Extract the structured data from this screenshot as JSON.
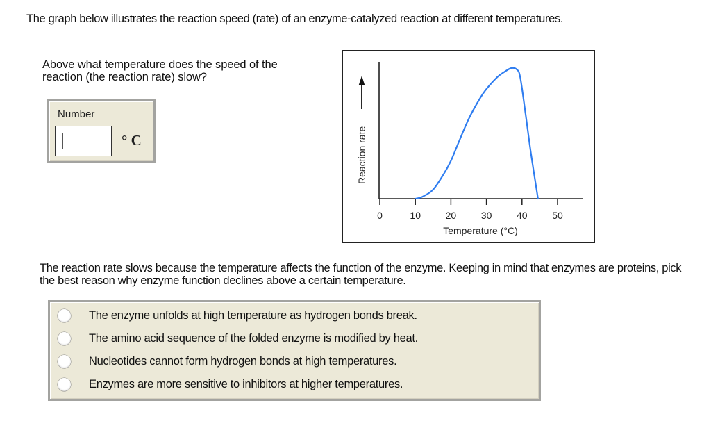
{
  "intro_text": "The graph below illustrates the reaction speed (rate) of an enzyme-catalyzed reaction at different temperatures.",
  "question1": {
    "text": "Above what temperature does the speed of the reaction (the reaction rate) slow?",
    "answer_box": {
      "label": "Number",
      "value": "",
      "unit": "° C"
    }
  },
  "chart_data": {
    "type": "line",
    "title": "",
    "xlabel": "Temperature (°C)",
    "ylabel": "Reaction rate",
    "ylabel_arrow": "up-arrow",
    "x_ticks": [
      0,
      10,
      20,
      30,
      40,
      50
    ],
    "xlim": [
      0,
      57
    ],
    "ylim": [
      0,
      105
    ],
    "y_ticks": [],
    "grid": false,
    "legend": null,
    "line_color": "#2f7df0",
    "series": [
      {
        "name": "Reaction rate",
        "x": [
          10,
          12,
          15,
          18,
          20,
          22,
          25,
          28,
          30,
          33,
          35,
          37,
          38.5,
          39.5,
          41,
          42.5,
          44.5
        ],
        "values": [
          0,
          1.5,
          7,
          19,
          29,
          42,
          61,
          76,
          84,
          93,
          97,
          100,
          99,
          93,
          65,
          35,
          0
        ]
      }
    ]
  },
  "question2": {
    "text": "The reaction rate slows because the temperature affects the function of the enzyme. Keeping in mind that enzymes are proteins, pick the best reason why enzyme function declines above a certain temperature.",
    "options": [
      {
        "label": "The enzyme unfolds at high temperature as hydrogen bonds break.",
        "selected": false
      },
      {
        "label": "The amino acid sequence of the folded enzyme is modified by heat.",
        "selected": false
      },
      {
        "label": "Nucleotides cannot form hydrogen bonds at high temperatures.",
        "selected": false
      },
      {
        "label": "Enzymes are more sensitive to inhibitors at higher temperatures.",
        "selected": false
      }
    ]
  },
  "colors": {
    "panel_bg": "#ece9d8",
    "panel_border": "#a3a3a0",
    "curve": "#2f7df0"
  }
}
